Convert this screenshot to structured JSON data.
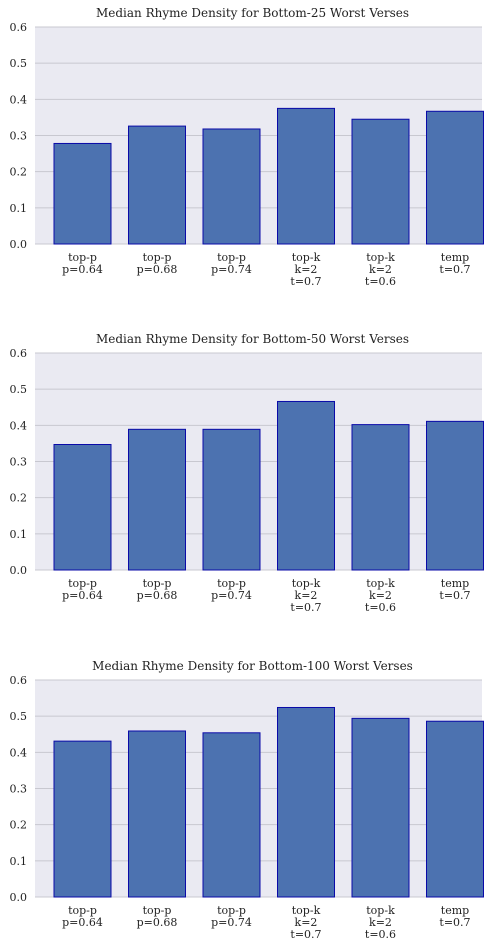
{
  "chart_data": [
    {
      "type": "bar",
      "title": "Median Rhyme Density for Bottom-25 Worst Verses",
      "categories": [
        [
          "top-p",
          "p=0.64"
        ],
        [
          "top-p",
          "p=0.68"
        ],
        [
          "top-p",
          "p=0.74"
        ],
        [
          "top-k",
          "k=2",
          "t=0.7"
        ],
        [
          "top-k",
          "k=2",
          "t=0.6"
        ],
        [
          "temp",
          "t=0.7"
        ]
      ],
      "values": [
        0.278,
        0.326,
        0.318,
        0.375,
        0.345,
        0.367
      ],
      "xlabel": "",
      "ylabel": "",
      "ylim": [
        0,
        0.6
      ],
      "yticks": [
        "0.0",
        "0.1",
        "0.2",
        "0.3",
        "0.4",
        "0.5",
        "0.6"
      ],
      "grid": true,
      "colors": {
        "bar": "#4c72b0",
        "edge": "#0a0aa8",
        "background": "#eaeaf2"
      }
    },
    {
      "type": "bar",
      "title": "Median Rhyme Density for Bottom-50 Worst Verses",
      "categories": [
        [
          "top-p",
          "p=0.64"
        ],
        [
          "top-p",
          "p=0.68"
        ],
        [
          "top-p",
          "p=0.74"
        ],
        [
          "top-k",
          "k=2",
          "t=0.7"
        ],
        [
          "top-k",
          "k=2",
          "t=0.6"
        ],
        [
          "temp",
          "t=0.7"
        ]
      ],
      "values": [
        0.347,
        0.389,
        0.389,
        0.466,
        0.402,
        0.411
      ],
      "xlabel": "",
      "ylabel": "",
      "ylim": [
        0,
        0.6
      ],
      "yticks": [
        "0.0",
        "0.1",
        "0.2",
        "0.3",
        "0.4",
        "0.5",
        "0.6"
      ],
      "grid": true,
      "colors": {
        "bar": "#4c72b0",
        "edge": "#0a0aa8",
        "background": "#eaeaf2"
      }
    },
    {
      "type": "bar",
      "title": "Median Rhyme Density for Bottom-100 Worst Verses",
      "categories": [
        [
          "top-p",
          "p=0.64"
        ],
        [
          "top-p",
          "p=0.68"
        ],
        [
          "top-p",
          "p=0.74"
        ],
        [
          "top-k",
          "k=2",
          "t=0.7"
        ],
        [
          "top-k",
          "k=2",
          "t=0.6"
        ],
        [
          "temp",
          "t=0.7"
        ]
      ],
      "values": [
        0.431,
        0.459,
        0.454,
        0.524,
        0.494,
        0.486
      ],
      "xlabel": "",
      "ylabel": "",
      "ylim": [
        0,
        0.6
      ],
      "yticks": [
        "0.0",
        "0.1",
        "0.2",
        "0.3",
        "0.4",
        "0.5",
        "0.6"
      ],
      "grid": true,
      "colors": {
        "bar": "#4c72b0",
        "edge": "#0a0aa8",
        "background": "#eaeaf2"
      }
    }
  ]
}
